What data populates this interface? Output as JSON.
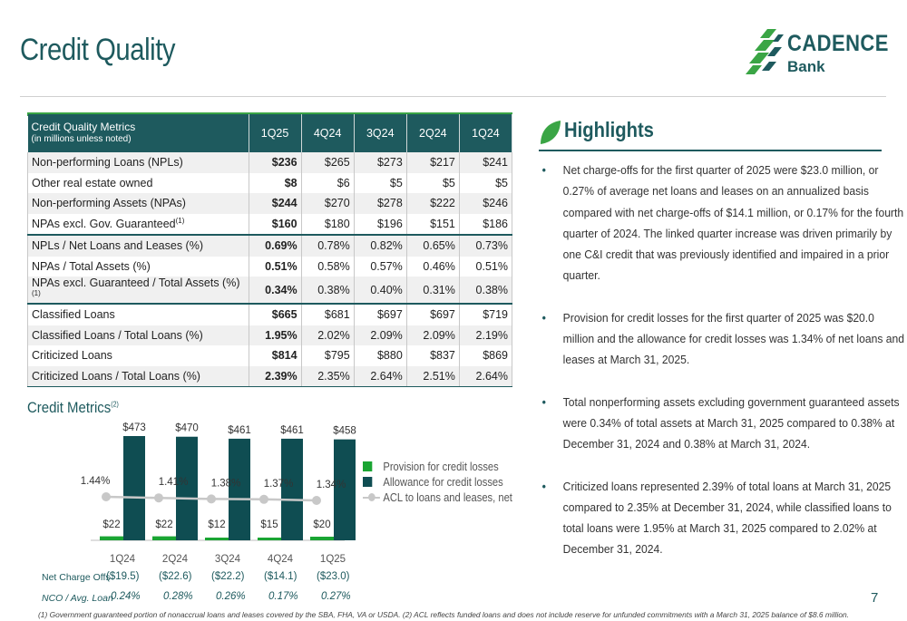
{
  "page": {
    "title": "Credit Quality",
    "page_number": "7",
    "footnote": "(1) Government guaranteed portion of nonaccrual loans and leases covered by the SBA, FHA, VA or USDA.  (2) ACL reflects funded loans and does not include reserve for unfunded commitments with a March 31, 2025 balance of $8.6 million."
  },
  "logo": {
    "line1": "CADENCE",
    "line2": "Bank"
  },
  "table": {
    "header_label": "Credit Quality Metrics",
    "header_sub": "(in millions unless noted)",
    "columns": [
      "1Q25",
      "4Q24",
      "3Q24",
      "2Q24",
      "1Q24"
    ],
    "rows": [
      {
        "label": "Non-performing Loans (NPLs)",
        "sup": "",
        "values": [
          "$236",
          "$265",
          "$273",
          "$217",
          "$241"
        ]
      },
      {
        "label": "Other real estate owned",
        "sup": "",
        "values": [
          "$8",
          "$6",
          "$5",
          "$5",
          "$5"
        ]
      },
      {
        "label": "Non-performing Assets (NPAs)",
        "sup": "",
        "values": [
          "$244",
          "$270",
          "$278",
          "$222",
          "$246"
        ]
      },
      {
        "label": "NPAs excl. Gov. Guaranteed",
        "sup": "(1)",
        "values": [
          "$160",
          "$180",
          "$196",
          "$151",
          "$186"
        ]
      },
      {
        "label": "NPLs / Net Loans and Leases (%)",
        "sup": "",
        "values": [
          "0.69%",
          "0.78%",
          "0.82%",
          "0.65%",
          "0.73%"
        ]
      },
      {
        "label": "NPAs / Total Assets (%)",
        "sup": "",
        "values": [
          "0.51%",
          "0.58%",
          "0.57%",
          "0.46%",
          "0.51%"
        ]
      },
      {
        "label": "NPAs excl. Guaranteed / Total Assets (%)",
        "sup": "(1)",
        "values": [
          "0.34%",
          "0.38%",
          "0.40%",
          "0.31%",
          "0.38%"
        ]
      },
      {
        "label": "Classified Loans",
        "sup": "",
        "values": [
          "$665",
          "$681",
          "$697",
          "$697",
          "$719"
        ]
      },
      {
        "label": "Classified Loans / Total Loans (%)",
        "sup": "",
        "values": [
          "1.95%",
          "2.02%",
          "2.09%",
          "2.09%",
          "2.19%"
        ]
      },
      {
        "label": "Criticized Loans",
        "sup": "",
        "values": [
          "$814",
          "$795",
          "$880",
          "$837",
          "$869"
        ]
      },
      {
        "label": "Criticized Loans / Total Loans (%)",
        "sup": "",
        "values": [
          "2.39%",
          "2.35%",
          "2.64%",
          "2.51%",
          "2.64%"
        ]
      }
    ]
  },
  "highlights": {
    "title": "Highlights",
    "bullets": [
      "Net charge-offs for the first quarter of 2025 were $23.0 million, or 0.27% of average net loans and leases on an annualized basis compared with net charge-offs of $14.1 million, or 0.17% for the fourth quarter of 2024. The linked quarter increase was driven primarily by one C&I credit that was previously identified and impaired in a prior quarter.",
      "Provision for credit losses for the first quarter of 2025 was $20.0 million and the allowance for credit losses was 1.34% of net loans and leases at March 31, 2025.",
      "Total nonperforming assets excluding government guaranteed assets were 0.34% of total assets at March 31, 2025 compared to 0.38% at December 31, 2024 and 0.38% at March 31, 2024.",
      "Criticized loans represented 2.39% of total loans at March 31, 2025 compared to 2.35% at December 31, 2024, while classified loans to total loans were 1.95% at March 31, 2025 compared to 2.02% at December 31, 2024."
    ]
  },
  "chart_data": {
    "type": "bar",
    "title": "Credit Metrics",
    "title_sup": "(2)",
    "categories": [
      "1Q24",
      "2Q24",
      "3Q24",
      "4Q24",
      "1Q25"
    ],
    "series": [
      {
        "name": "Provision for credit losses",
        "values": [
          22,
          22,
          12,
          15,
          20
        ],
        "labels": [
          "$22",
          "$22",
          "$12",
          "$15",
          "$20"
        ],
        "color": "#1aa533"
      },
      {
        "name": "Allowance for credit losses",
        "values": [
          473,
          470,
          461,
          461,
          458
        ],
        "labels": [
          "$473",
          "$470",
          "$461",
          "$461",
          "$458"
        ],
        "color": "#0f4d52"
      },
      {
        "name": "ACL to loans and leases, net",
        "type": "line",
        "values": [
          1.44,
          1.41,
          1.38,
          1.37,
          1.34
        ],
        "labels": [
          "1.44%",
          "1.41%",
          "1.38%",
          "1.37%",
          "1.34%"
        ],
        "color": "#c8c8c8"
      }
    ],
    "legend": "right",
    "grid": false
  },
  "nco": {
    "label1": "Net Charge Offs",
    "label2": "NCO / Avg. Loan",
    "values": [
      "($19.5)",
      "($22.6)",
      "($22.2)",
      "($14.1)",
      "($23.0)"
    ],
    "ratios": [
      "0.24%",
      "0.28%",
      "0.26%",
      "0.17%",
      "0.27%"
    ]
  },
  "colors": {
    "teal": "#1e5a5e",
    "green": "#3aa545"
  }
}
